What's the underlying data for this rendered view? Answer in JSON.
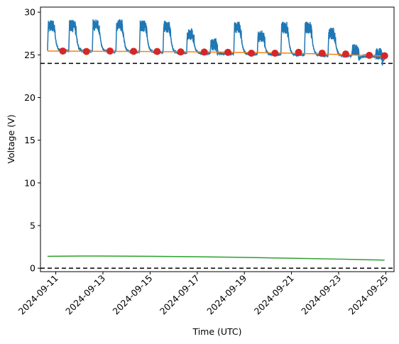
{
  "chart_data": {
    "type": "line",
    "title": "",
    "xlabel": "Time (UTC)",
    "ylabel": "Voltage (V)",
    "grid": false,
    "legend": "none",
    "xlim": [
      -0.65,
      14.35
    ],
    "ylim": [
      -0.4,
      30.6
    ],
    "x_origin_date": "2024-09-11",
    "x_ticks": [
      0,
      2,
      4,
      6,
      8,
      10,
      12,
      14
    ],
    "x_tick_labels": [
      "2024-09-11",
      "2024-09-13",
      "2024-09-15",
      "2024-09-17",
      "2024-09-19",
      "2024-09-21",
      "2024-09-23",
      "2024-09-25"
    ],
    "y_ticks": [
      0,
      5,
      10,
      15,
      20,
      25,
      30
    ],
    "y_tick_labels": [
      "0",
      "5",
      "10",
      "15",
      "20",
      "25",
      "30"
    ],
    "hlines": [
      {
        "y": 24.0,
        "color": "#000000",
        "style": "dashed"
      },
      {
        "y": 0.0,
        "color": "#000000",
        "style": "dashed"
      }
    ],
    "series": [
      {
        "color": "#1f77b4",
        "kind": "line",
        "daily_cycles": [
          {
            "start": -0.35,
            "peak": 29.0
          },
          {
            "start": 0.55,
            "peak": 29.0
          },
          {
            "start": 1.55,
            "peak": 29.1
          },
          {
            "start": 2.55,
            "peak": 29.1
          },
          {
            "start": 3.55,
            "peak": 29.0
          },
          {
            "start": 4.55,
            "peak": 28.9
          },
          {
            "start": 5.55,
            "peak": 28.0
          },
          {
            "start": 6.55,
            "peak": 26.8
          },
          {
            "start": 7.55,
            "peak": 28.8
          },
          {
            "start": 8.55,
            "peak": 27.8
          },
          {
            "start": 9.55,
            "peak": 28.8
          },
          {
            "start": 10.55,
            "peak": 28.8
          },
          {
            "start": 11.55,
            "peak": 28.1
          },
          {
            "start": 12.55,
            "peak": 26.2
          },
          {
            "start": 13.55,
            "peak": 25.7
          }
        ],
        "baseline_start": 25.5,
        "baseline_end": 24.8,
        "x_end": 13.95
      },
      {
        "color": "#ff7f0e",
        "kind": "line",
        "x": [
          -0.35,
          2,
          4,
          6,
          8,
          10,
          12,
          13.95
        ],
        "y": [
          25.45,
          25.42,
          25.4,
          25.35,
          25.28,
          25.2,
          25.05,
          24.85
        ]
      },
      {
        "color": "#2ca02c",
        "kind": "line",
        "x": [
          -0.35,
          1,
          2,
          4,
          6,
          8,
          10,
          12,
          13.95
        ],
        "y": [
          1.4,
          1.43,
          1.43,
          1.4,
          1.35,
          1.27,
          1.17,
          1.07,
          0.95
        ]
      },
      {
        "color": "#d62728",
        "kind": "scatter",
        "x": [
          0.3,
          1.3,
          2.3,
          3.3,
          4.3,
          5.3,
          6.3,
          7.3,
          8.3,
          9.3,
          10.3,
          11.3,
          12.3,
          13.3,
          13.95
        ],
        "y": [
          25.45,
          25.4,
          25.45,
          25.42,
          25.4,
          25.35,
          25.33,
          25.3,
          25.2,
          25.2,
          25.3,
          25.2,
          25.1,
          24.95,
          24.9
        ]
      }
    ]
  }
}
